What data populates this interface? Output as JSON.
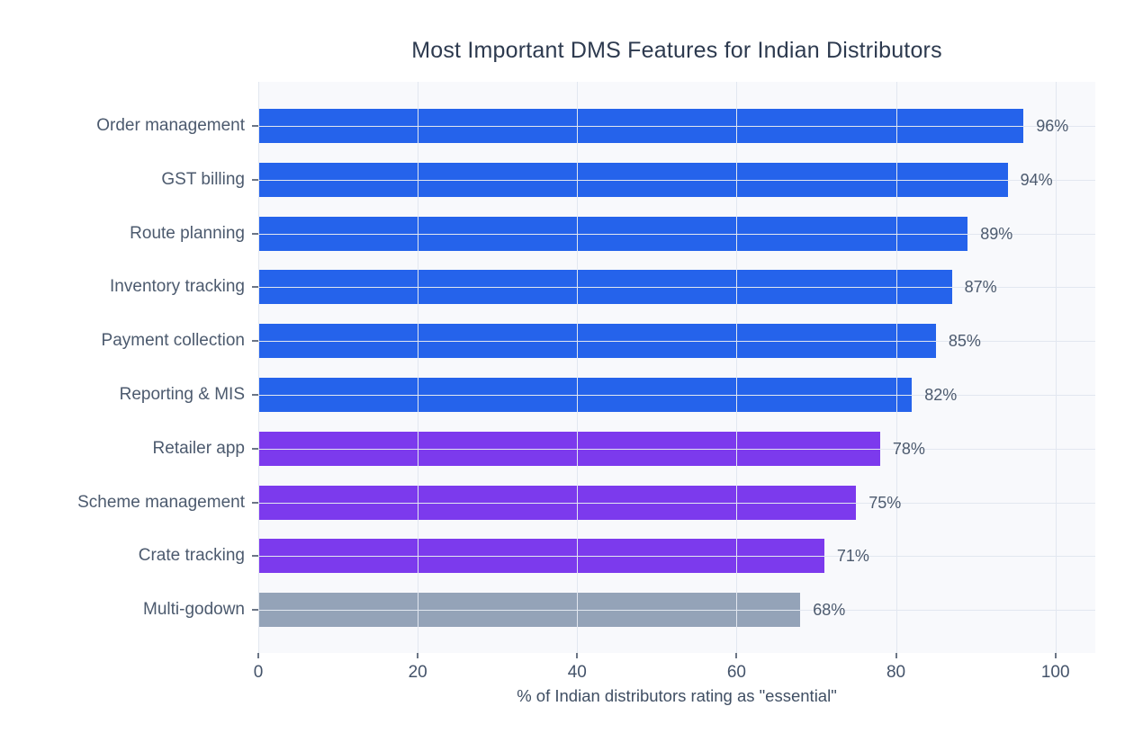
{
  "chart_data": {
    "type": "bar",
    "orientation": "horizontal",
    "title": "Most Important DMS Features for Indian Distributors",
    "xlabel": "% of Indian distributors rating as \"essential\"",
    "ylabel": "",
    "xlim": [
      0,
      105
    ],
    "xticks": [
      0,
      20,
      40,
      60,
      80,
      100
    ],
    "grid": true,
    "legend_position": "none",
    "categories": [
      "Order management",
      "GST billing",
      "Route planning",
      "Inventory tracking",
      "Payment collection",
      "Reporting & MIS",
      "Retailer app",
      "Scheme management",
      "Crate tracking",
      "Multi-godown"
    ],
    "values": [
      96,
      94,
      89,
      87,
      85,
      82,
      78,
      75,
      71,
      68
    ],
    "value_labels": [
      "96%",
      "94%",
      "89%",
      "87%",
      "85%",
      "82%",
      "78%",
      "75%",
      "71%",
      "68%"
    ],
    "bar_colors": [
      "#2563eb",
      "#2563eb",
      "#2563eb",
      "#2563eb",
      "#2563eb",
      "#2563eb",
      "#7c3aed",
      "#7c3aed",
      "#7c3aed",
      "#94a3b8"
    ],
    "colors": {
      "blue_bar": "#2563eb",
      "purple_bar": "#7c3aed",
      "gray_bar": "#94a3b8",
      "gridline": "#e2e7f0",
      "plot_background": "#f8f9fc",
      "axis_text": "#44536a",
      "label_text": "#4c5a6e",
      "title_text": "#2d3a4f",
      "tick_mark": "#6b7585"
    }
  }
}
